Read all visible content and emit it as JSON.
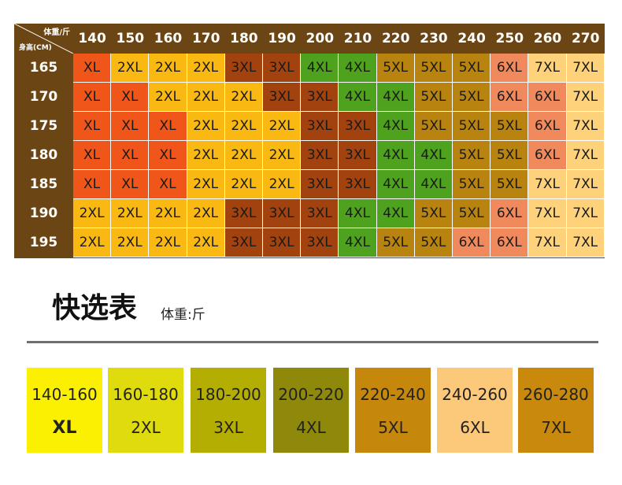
{
  "table": {
    "corner_weight": "体重/斤",
    "corner_height": "身高(CM)",
    "weights": [
      "140",
      "150",
      "160",
      "170",
      "180",
      "190",
      "200",
      "210",
      "220",
      "230",
      "240",
      "250",
      "260",
      "270"
    ],
    "rows": [
      {
        "height": "165",
        "sizes": [
          "XL",
          "2XL",
          "2XL",
          "2XL",
          "3XL",
          "3XL",
          "4XL",
          "4XL",
          "5XL",
          "5XL",
          "5XL",
          "6XL",
          "7XL",
          "7XL"
        ]
      },
      {
        "height": "170",
        "sizes": [
          "XL",
          "XL",
          "2XL",
          "2XL",
          "2XL",
          "3XL",
          "3XL",
          "4XL",
          "4XL",
          "5XL",
          "5XL",
          "6XL",
          "6XL",
          "7XL"
        ]
      },
      {
        "height": "175",
        "sizes": [
          "XL",
          "XL",
          "XL",
          "2XL",
          "2XL",
          "2XL",
          "3XL",
          "3XL",
          "4XL",
          "5XL",
          "5XL",
          "5XL",
          "6XL",
          "7XL"
        ]
      },
      {
        "height": "180",
        "sizes": [
          "XL",
          "XL",
          "XL",
          "2XL",
          "2XL",
          "2XL",
          "3XL",
          "3XL",
          "4XL",
          "4XL",
          "5XL",
          "5XL",
          "6XL",
          "7XL"
        ]
      },
      {
        "height": "185",
        "sizes": [
          "XL",
          "XL",
          "XL",
          "2XL",
          "2XL",
          "2XL",
          "3XL",
          "3XL",
          "4XL",
          "4XL",
          "5XL",
          "5XL",
          "7XL",
          "7XL"
        ]
      },
      {
        "height": "190",
        "sizes": [
          "2XL",
          "2XL",
          "2XL",
          "2XL",
          "3XL",
          "3XL",
          "3XL",
          "4XL",
          "4XL",
          "5XL",
          "5XL",
          "6XL",
          "7XL",
          "7XL"
        ]
      },
      {
        "height": "195",
        "sizes": [
          "2XL",
          "2XL",
          "2XL",
          "2XL",
          "3XL",
          "3XL",
          "3XL",
          "4XL",
          "5XL",
          "5XL",
          "6XL",
          "6XL",
          "7XL",
          "7XL"
        ]
      }
    ]
  },
  "size_colors": {
    "XL": "#f0561a",
    "2XL": "#f9b912",
    "3XL": "#a2420f",
    "4XL": "#4ea21e",
    "5XL": "#b8830e",
    "6XL": "#f08a5d",
    "7XL": "#fdd27a"
  },
  "quick_table": {
    "title": "快选表",
    "unit": "体重:斤",
    "items": [
      {
        "range": "140-160",
        "size": "XL",
        "color": "#fbf002"
      },
      {
        "range": "160-180",
        "size": "2XL",
        "color": "#dfdb0c"
      },
      {
        "range": "180-200",
        "size": "3XL",
        "color": "#b5ae02"
      },
      {
        "range": "200-220",
        "size": "4XL",
        "color": "#8e890b"
      },
      {
        "range": "220-240",
        "size": "5XL",
        "color": "#c6870d"
      },
      {
        "range": "240-260",
        "size": "6XL",
        "color": "#fcc87a"
      },
      {
        "range": "260-280",
        "size": "7XL",
        "color": "#c8890c"
      }
    ]
  }
}
